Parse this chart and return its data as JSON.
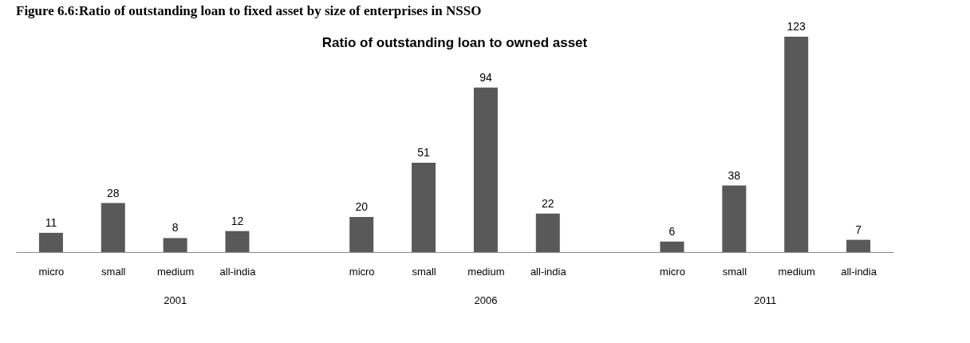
{
  "chart_data": {
    "type": "bar",
    "title": "Figure 6.6:Ratio of outstanding loan to fixed asset by size of enterprises in NSSO",
    "subtitle": "Ratio of outstanding loan to owned asset",
    "categories": [
      "micro",
      "small",
      "medium",
      "all-india",
      null,
      "micro",
      "small",
      "medium",
      "all-india",
      null,
      "micro",
      "small",
      "medium",
      "all-india"
    ],
    "series": [
      {
        "color": "#595959",
        "values": [
          11,
          28,
          8,
          12,
          null,
          20,
          51,
          94,
          22,
          null,
          6,
          38,
          123,
          7
        ]
      }
    ],
    "annotations": [
      "2001",
      "2006",
      "2011"
    ],
    "data_labels": true,
    "grid": false
  }
}
